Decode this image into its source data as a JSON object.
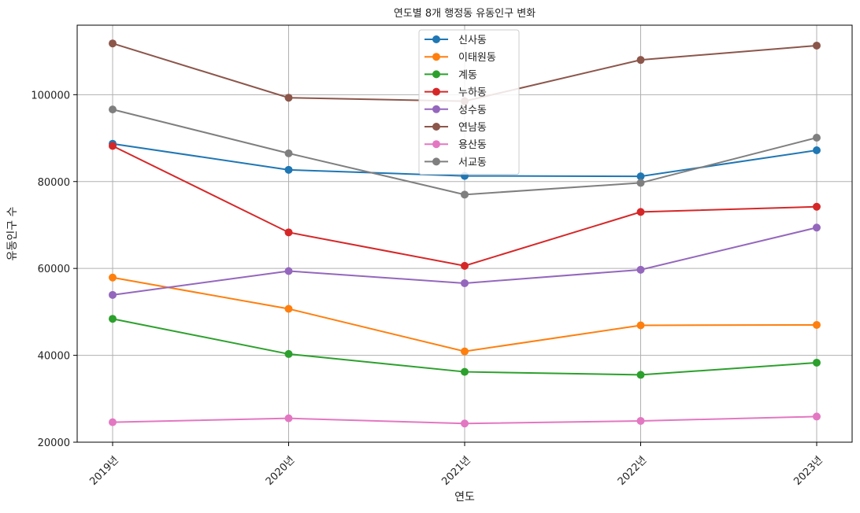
{
  "chart_data": {
    "type": "line",
    "title": "연도별 8개 행정동 유동인구 변화",
    "xlabel": "연도",
    "ylabel": "유동인구 수",
    "categories": [
      "2019년",
      "2020년",
      "2021년",
      "2022년",
      "2023년"
    ],
    "ylim": [
      20000,
      116000
    ],
    "yticks": [
      20000,
      40000,
      60000,
      80000,
      100000
    ],
    "grid": true,
    "legend_position": "top-center",
    "series": [
      {
        "name": "신사동",
        "color": "#1f77b4",
        "values": [
          88700,
          82700,
          81300,
          81200,
          87200
        ]
      },
      {
        "name": "이태원동",
        "color": "#ff7f0e",
        "values": [
          57900,
          50700,
          40900,
          46900,
          47000
        ]
      },
      {
        "name": "계동",
        "color": "#2ca02c",
        "values": [
          48400,
          40300,
          36200,
          35500,
          38300
        ]
      },
      {
        "name": "누하동",
        "color": "#d62728",
        "values": [
          88200,
          68300,
          60600,
          73000,
          74200
        ]
      },
      {
        "name": "성수동",
        "color": "#9467bd",
        "values": [
          53900,
          59400,
          56600,
          59700,
          69400
        ]
      },
      {
        "name": "연남동",
        "color": "#8c564b",
        "values": [
          111800,
          99300,
          98500,
          108000,
          111300
        ]
      },
      {
        "name": "용산동",
        "color": "#e377c2",
        "values": [
          24600,
          25500,
          24300,
          24900,
          25900
        ]
      },
      {
        "name": "서교동",
        "color": "#7f7f7f",
        "values": [
          96600,
          86500,
          77000,
          79700,
          90100
        ]
      }
    ]
  }
}
